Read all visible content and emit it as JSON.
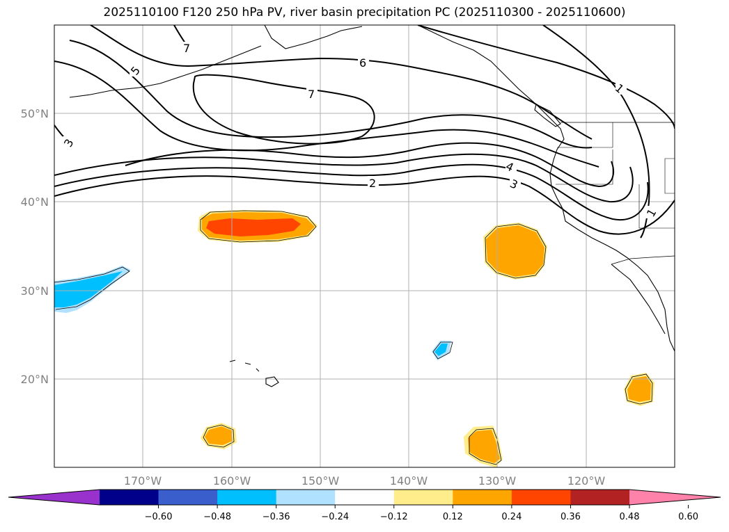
{
  "title": "2025110100 F120 250 hPa PV, river basin precipitation PC (2025110300 - 2025110600)",
  "map": {
    "lon_range": [
      -180,
      -110
    ],
    "lat_range": [
      10,
      60
    ],
    "lon_gridlines": [
      -170,
      -160,
      -150,
      -140,
      -130,
      -120
    ],
    "lat_gridlines": [
      20,
      30,
      40,
      50
    ],
    "lon_labels": [
      "170°W",
      "160°W",
      "150°W",
      "140°W",
      "130°W",
      "120°W"
    ],
    "lat_labels": [
      "20°N",
      "30°N",
      "40°N",
      "50°N"
    ]
  },
  "pv_contour_labels": [
    "7",
    "5",
    "6",
    "7",
    "3",
    "1",
    "4",
    "3",
    "2",
    "1"
  ],
  "colorbar": {
    "ticks": [
      "−0.60",
      "−0.48",
      "−0.36",
      "−0.24",
      "−0.12",
      "0.12",
      "0.24",
      "0.36",
      "0.48",
      "0.60"
    ],
    "colors": [
      "#9932cc",
      "#00008b",
      "#3a5fcd",
      "#00bfff",
      "#b0e2ff",
      "#ffffff",
      "#ffec8b",
      "#ffa500",
      "#ff4500",
      "#b22222",
      "#ff82ab"
    ]
  }
}
